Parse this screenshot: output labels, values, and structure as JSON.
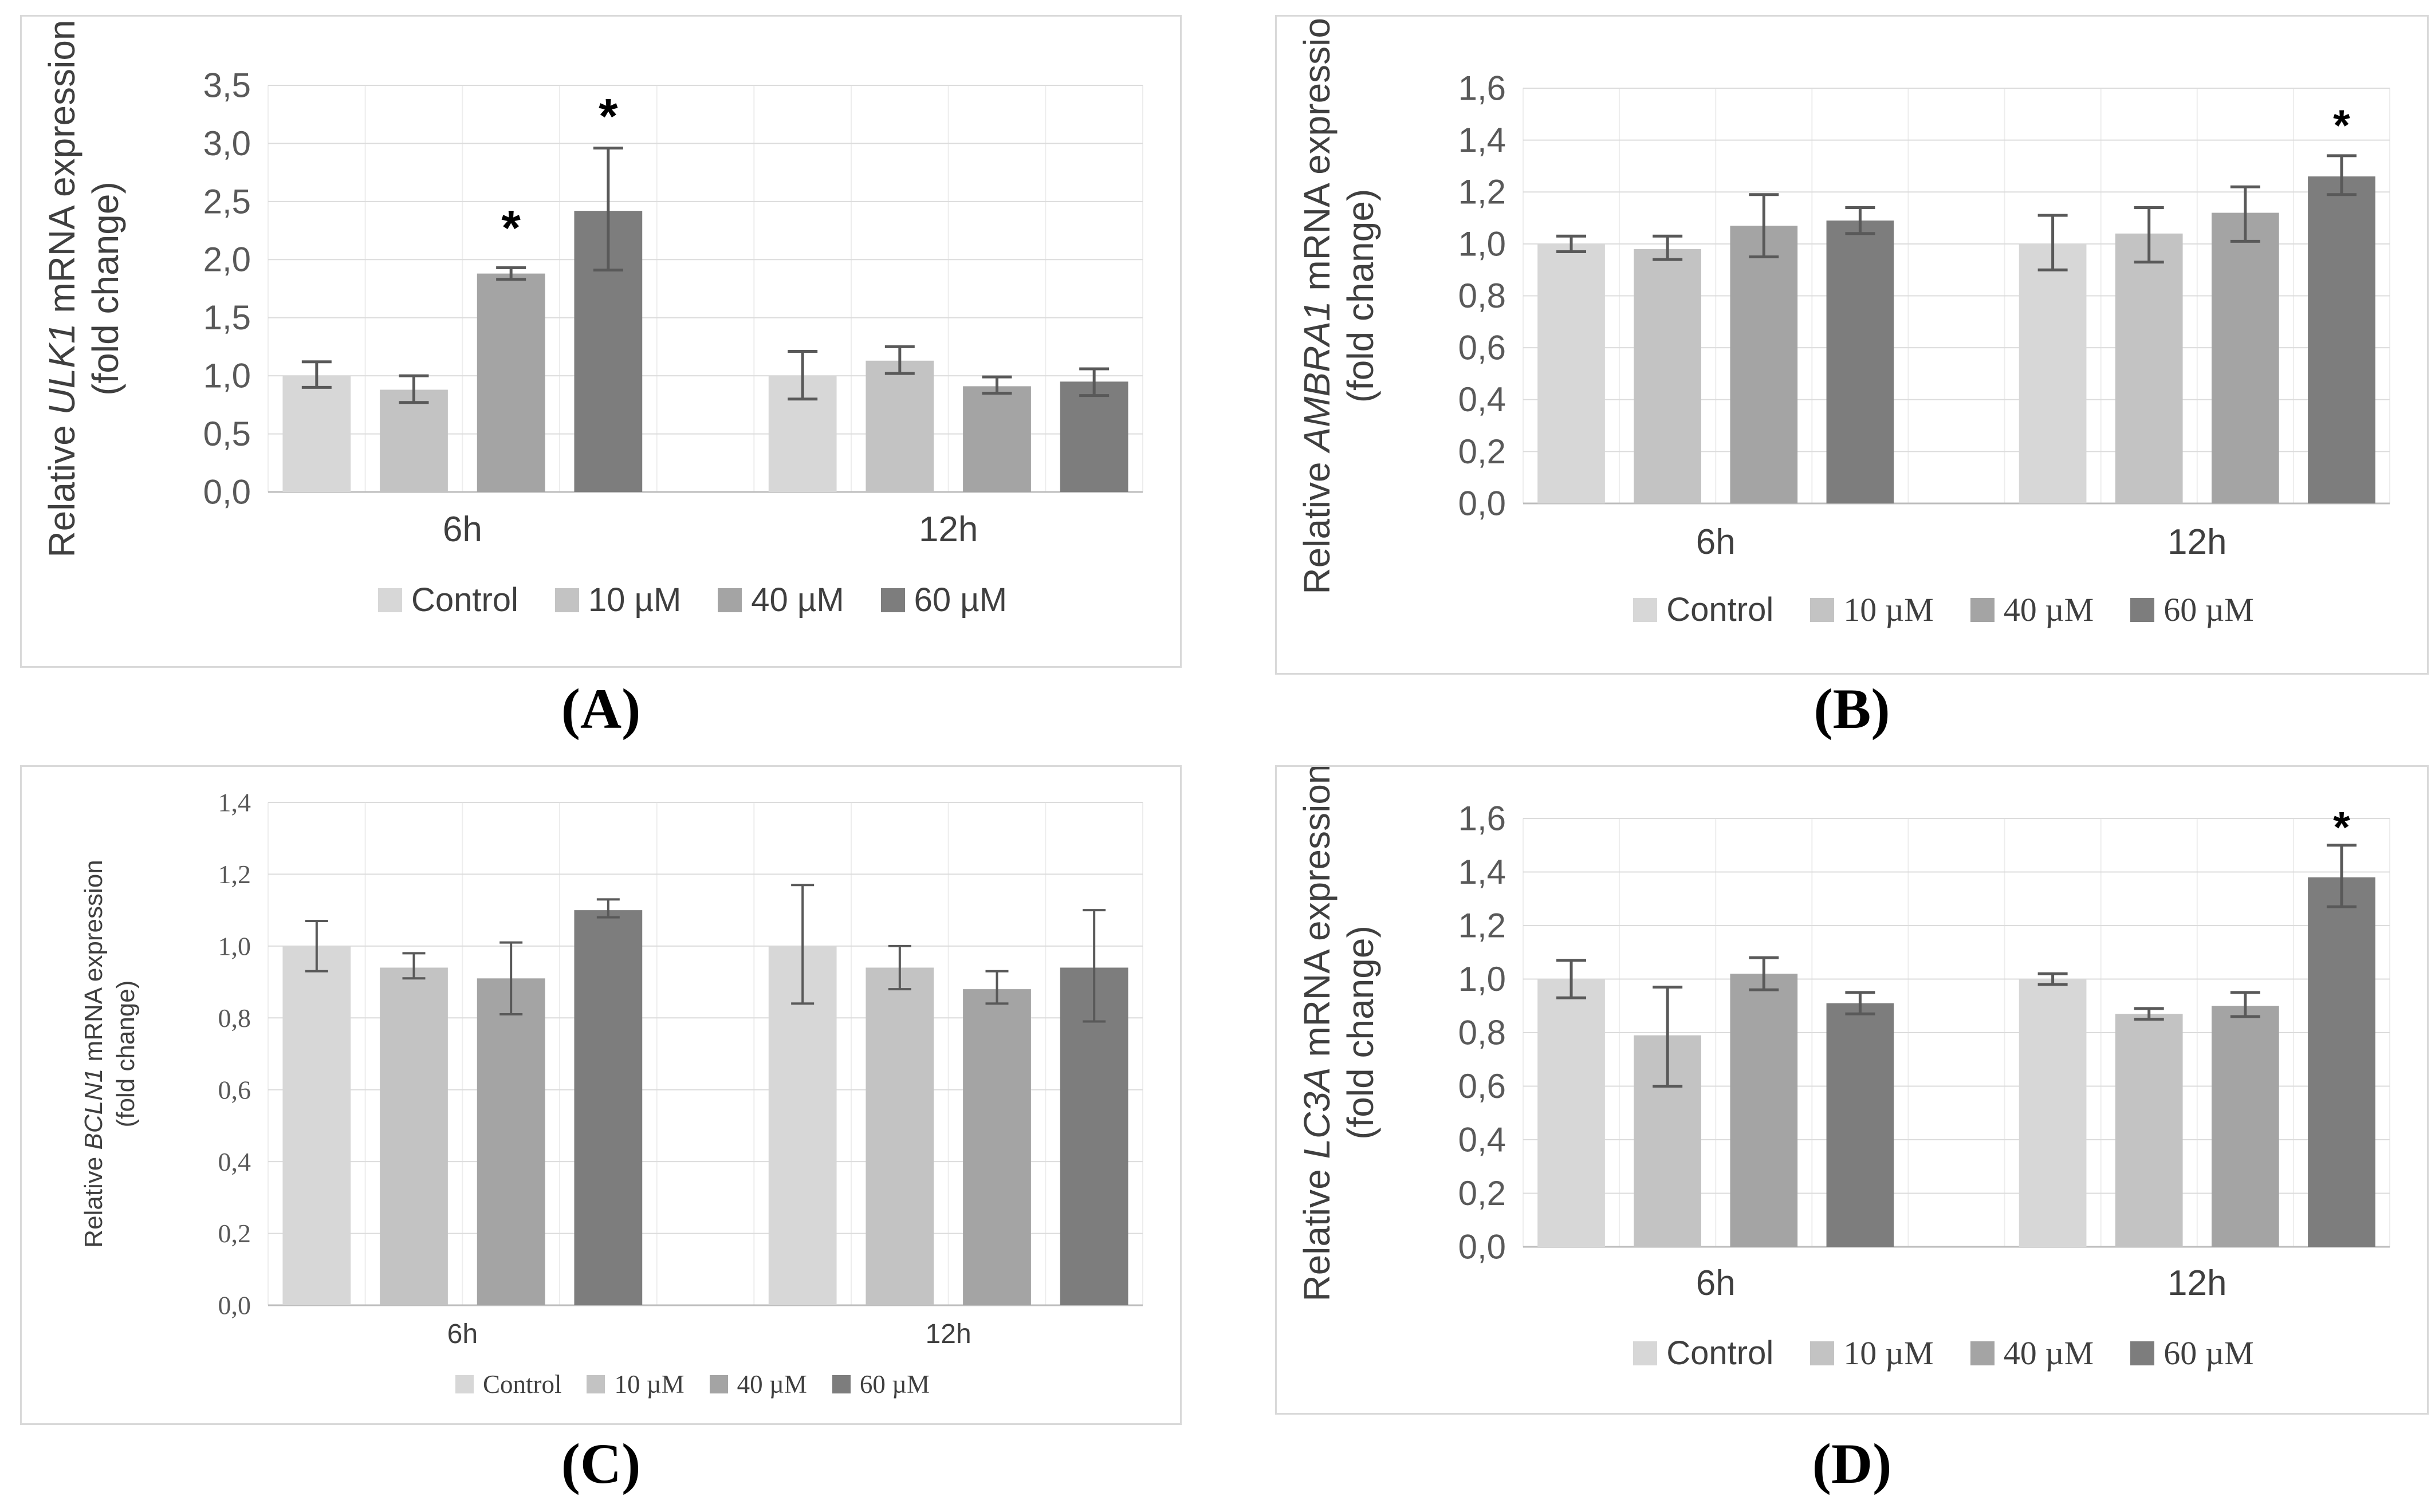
{
  "style": {
    "series_colors": [
      "#d7d7d7",
      "#c3c3c3",
      "#a4a4a4",
      "#7d7d7d"
    ],
    "error_bar_color": "#595959",
    "gridline_color": "#dcdcdc",
    "vertical_gridline_color": "#ededed",
    "axis_line_color": "#bdbdbd",
    "tick_label_color": "#595959",
    "text_color": "#3f3f3f",
    "significance_color": "#000000",
    "panel_border_color": "#d9d9d9",
    "background": "#ffffff"
  },
  "chart_data": [
    {
      "panel": "A",
      "type": "bar",
      "caption": "(A)",
      "ylabel": {
        "prefix": "Relative ",
        "gene": "ULK1",
        "suffix": " mRNA expression",
        "line2": "(fold change)"
      },
      "y_axis": {
        "min": 0,
        "max": 3.5,
        "step": 0.5,
        "tick_labels": [
          "0,0",
          "0,5",
          "1,0",
          "1,5",
          "2,0",
          "2,5",
          "3,0",
          "3,5"
        ]
      },
      "categories": [
        "6h",
        "12h"
      ],
      "legend_position": "bottom",
      "grid": true,
      "series": [
        {
          "name": "Control",
          "values": [
            1.0,
            1.0
          ],
          "err_lo": [
            0.9,
            0.8
          ],
          "err_hi": [
            1.12,
            1.21
          ]
        },
        {
          "name": "10 µM",
          "values": [
            0.88,
            1.13
          ],
          "err_lo": [
            0.77,
            1.02
          ],
          "err_hi": [
            1.0,
            1.25
          ]
        },
        {
          "name": "40 µM",
          "values": [
            1.88,
            0.91
          ],
          "err_lo": [
            1.83,
            0.85
          ],
          "err_hi": [
            1.93,
            0.99
          ]
        },
        {
          "name": "60 µM",
          "values": [
            2.42,
            0.95
          ],
          "err_lo": [
            1.91,
            0.83
          ],
          "err_hi": [
            2.96,
            1.06
          ]
        }
      ],
      "significance": [
        {
          "category": "6h",
          "series": "40 µM",
          "label": "*",
          "y": 2.28
        },
        {
          "category": "6h",
          "series": "60 µM",
          "label": "*",
          "y": 3.24
        }
      ]
    },
    {
      "panel": "B",
      "type": "bar",
      "caption": "(B)",
      "ylabel": {
        "prefix": "Relative ",
        "gene": "AMBRA1",
        "suffix": " mRNA expression",
        "line2": "(fold change)"
      },
      "y_axis": {
        "min": 0,
        "max": 1.6,
        "step": 0.2,
        "tick_labels": [
          "0,0",
          "0,2",
          "0,4",
          "0,6",
          "0,8",
          "1,0",
          "1,2",
          "1,4",
          "1,6"
        ]
      },
      "categories": [
        "6h",
        "12h"
      ],
      "legend_position": "bottom",
      "grid": true,
      "series": [
        {
          "name": "Control",
          "values": [
            1.0,
            1.0
          ],
          "err_lo": [
            0.97,
            0.9
          ],
          "err_hi": [
            1.03,
            1.11
          ]
        },
        {
          "name": "10 µM",
          "values": [
            0.98,
            1.04
          ],
          "err_lo": [
            0.94,
            0.93
          ],
          "err_hi": [
            1.03,
            1.14
          ]
        },
        {
          "name": "40 µM",
          "values": [
            1.07,
            1.12
          ],
          "err_lo": [
            0.95,
            1.01
          ],
          "err_hi": [
            1.19,
            1.22
          ]
        },
        {
          "name": "60 µM",
          "values": [
            1.09,
            1.26
          ],
          "err_lo": [
            1.04,
            1.19
          ],
          "err_hi": [
            1.14,
            1.34
          ]
        }
      ],
      "significance": [
        {
          "category": "12h",
          "series": "60 µM",
          "label": "*",
          "y": 1.46
        }
      ]
    },
    {
      "panel": "C",
      "type": "bar",
      "caption": "(C)",
      "ylabel": {
        "prefix": "Relative ",
        "gene": "BCLN1",
        "suffix": " mRNA expression",
        "line2": "(fold change)"
      },
      "y_axis": {
        "min": 0,
        "max": 1.4,
        "step": 0.2,
        "tick_labels": [
          "0,0",
          "0,2",
          "0,4",
          "0,6",
          "0,8",
          "1,0",
          "1,2",
          "1,4"
        ]
      },
      "categories": [
        "6h",
        "12h"
      ],
      "legend_position": "bottom",
      "grid": true,
      "series": [
        {
          "name": "Control",
          "values": [
            1.0,
            1.0
          ],
          "err_lo": [
            0.93,
            0.84
          ],
          "err_hi": [
            1.07,
            1.17
          ]
        },
        {
          "name": "10 µM",
          "values": [
            0.94,
            0.94
          ],
          "err_lo": [
            0.91,
            0.88
          ],
          "err_hi": [
            0.98,
            1.0
          ]
        },
        {
          "name": "40 µM",
          "values": [
            0.91,
            0.88
          ],
          "err_lo": [
            0.81,
            0.84
          ],
          "err_hi": [
            1.01,
            0.93
          ]
        },
        {
          "name": "60 µM",
          "values": [
            1.1,
            0.94
          ],
          "err_lo": [
            1.08,
            0.79
          ],
          "err_hi": [
            1.13,
            1.1
          ]
        }
      ],
      "significance": []
    },
    {
      "panel": "D",
      "type": "bar",
      "caption": "(D)",
      "ylabel": {
        "prefix": "Relative ",
        "gene": "LC3A",
        "suffix": " mRNA expression",
        "line2": "(fold change)"
      },
      "y_axis": {
        "min": 0,
        "max": 1.6,
        "step": 0.2,
        "tick_labels": [
          "0,0",
          "0,2",
          "0,4",
          "0,6",
          "0,8",
          "1,0",
          "1,2",
          "1,4",
          "1,6"
        ]
      },
      "categories": [
        "6h",
        "12h"
      ],
      "legend_position": "bottom",
      "grid": true,
      "series": [
        {
          "name": "Control",
          "values": [
            1.0,
            1.0
          ],
          "err_lo": [
            0.93,
            0.98
          ],
          "err_hi": [
            1.07,
            1.02
          ]
        },
        {
          "name": "10 µM",
          "values": [
            0.79,
            0.87
          ],
          "err_lo": [
            0.6,
            0.85
          ],
          "err_hi": [
            0.97,
            0.89
          ]
        },
        {
          "name": "40 µM",
          "values": [
            1.02,
            0.9
          ],
          "err_lo": [
            0.96,
            0.86
          ],
          "err_hi": [
            1.08,
            0.95
          ]
        },
        {
          "name": "60 µM",
          "values": [
            0.91,
            1.38
          ],
          "err_lo": [
            0.87,
            1.27
          ],
          "err_hi": [
            0.95,
            1.5
          ]
        }
      ],
      "significance": [
        {
          "category": "12h",
          "series": "60 µM",
          "label": "*",
          "y": 1.57
        }
      ]
    }
  ]
}
